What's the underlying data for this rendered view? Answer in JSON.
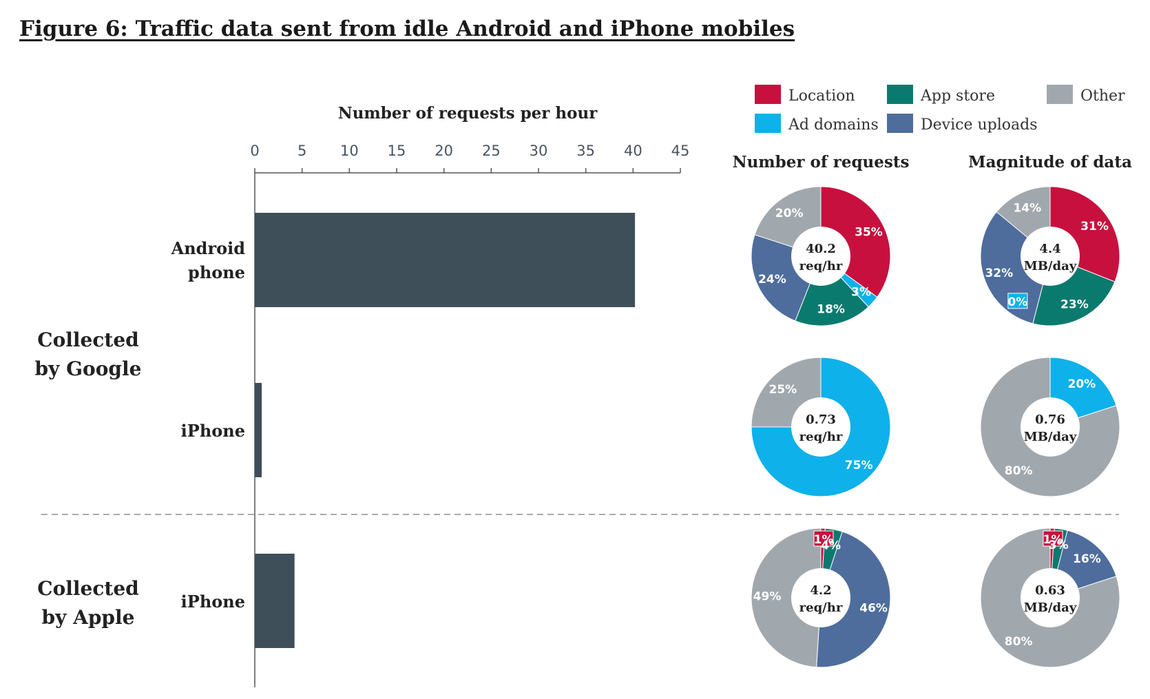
{
  "title": "Figure 6: Traffic data sent from idle Android and iPhone mobiles",
  "colors": {
    "Location": "#c8103e",
    "Ad domains": "#0eb1ea",
    "App store": "#0b7a6e",
    "Device uploads": "#4e6d9c",
    "Other": "#a1a8ad",
    "bar": "#3e4f5a",
    "axis": "#555555"
  },
  "legend": [
    "Location",
    "App store",
    "Other",
    "Ad domains",
    "Device uploads"
  ],
  "column_titles": {
    "requests": "Number of requests",
    "magnitude": "Magnitude of data"
  },
  "groups": [
    {
      "label_lines": [
        "Collected",
        "by Google"
      ]
    },
    {
      "label_lines": [
        "Collected",
        "by Apple"
      ]
    }
  ],
  "chart_data": [
    {
      "type": "bar",
      "orientation": "horizontal",
      "xlabel": "Number of requests per hour",
      "xlim": [
        0,
        45
      ],
      "xticks": [
        "0",
        "5",
        "10",
        "15",
        "20",
        "25",
        "30",
        "35",
        "40",
        "45"
      ],
      "categories": [
        {
          "lines": [
            "Android",
            "phone"
          ],
          "value": 40.2
        },
        {
          "lines": [
            "iPhone"
          ],
          "value": 0.73
        },
        {
          "lines": [
            "iPhone"
          ],
          "value": 4.2
        }
      ]
    },
    {
      "type": "pie",
      "title": "Number of requests",
      "center": [
        "40.2",
        "req/hr"
      ],
      "slices": [
        {
          "name": "Location",
          "value": 35,
          "label": "35%"
        },
        {
          "name": "Ad domains",
          "value": 3,
          "label": "3%"
        },
        {
          "name": "App store",
          "value": 18,
          "label": "18%"
        },
        {
          "name": "Device uploads",
          "value": 24,
          "label": "24%"
        },
        {
          "name": "Other",
          "value": 20,
          "label": "20%"
        }
      ]
    },
    {
      "type": "pie",
      "title": "Magnitude of data",
      "center": [
        "4.4",
        "MB/day"
      ],
      "slices": [
        {
          "name": "Location",
          "value": 31,
          "label": "31%"
        },
        {
          "name": "Ad domains",
          "value": 0,
          "label": "0%"
        },
        {
          "name": "App store",
          "value": 23,
          "label": "23%"
        },
        {
          "name": "Device uploads",
          "value": 32,
          "label": "32%"
        },
        {
          "name": "Other",
          "value": 14,
          "label": "14%"
        }
      ]
    },
    {
      "type": "pie",
      "title": "Number of requests",
      "center": [
        "0.73",
        "req/hr"
      ],
      "slices": [
        {
          "name": "Ad domains",
          "value": 75,
          "label": "75%"
        },
        {
          "name": "Other",
          "value": 25,
          "label": "25%"
        }
      ]
    },
    {
      "type": "pie",
      "title": "Magnitude of data",
      "center": [
        "0.76",
        "MB/day"
      ],
      "slices": [
        {
          "name": "Ad domains",
          "value": 20,
          "label": "20%"
        },
        {
          "name": "Other",
          "value": 80,
          "label": "80%"
        }
      ]
    },
    {
      "type": "pie",
      "title": "Number of requests",
      "center": [
        "4.2",
        "req/hr"
      ],
      "slices": [
        {
          "name": "Location",
          "value": 1,
          "label": "1%"
        },
        {
          "name": "App store",
          "value": 4,
          "label": "4%"
        },
        {
          "name": "Device uploads",
          "value": 46,
          "label": "46%"
        },
        {
          "name": "Other",
          "value": 49,
          "label": "49%"
        }
      ]
    },
    {
      "type": "pie",
      "title": "Magnitude of data",
      "center": [
        "0.63",
        "MB/day"
      ],
      "slices": [
        {
          "name": "Location",
          "value": 1,
          "label": "1%"
        },
        {
          "name": "App store",
          "value": 3,
          "label": "3%"
        },
        {
          "name": "Device uploads",
          "value": 16,
          "label": "16%"
        },
        {
          "name": "Other",
          "value": 80,
          "label": "80%"
        }
      ]
    }
  ]
}
